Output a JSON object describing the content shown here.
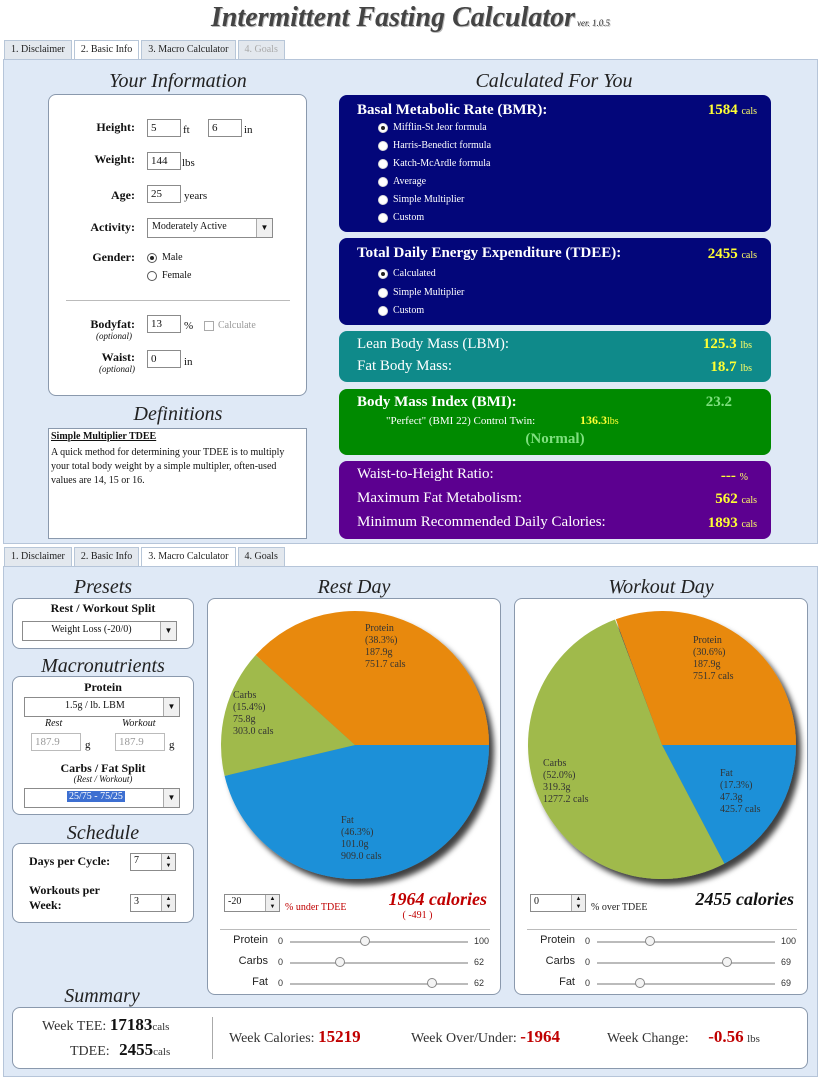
{
  "app": {
    "title": "Intermittent Fasting Calculator",
    "version": "ver. 1.0.5"
  },
  "tabs_top": [
    "1. Disclaimer",
    "2. Basic Info",
    "3. Macro Calculator",
    "4. Goals"
  ],
  "tabs_bottom": [
    "1. Disclaimer",
    "2. Basic Info",
    "3. Macro Calculator",
    "4. Goals"
  ],
  "info": {
    "title": "Your Information",
    "height_label": "Height:",
    "height_ft": "5",
    "ft": "ft",
    "height_in": "6",
    "in": "in",
    "weight_label": "Weight:",
    "weight": "144",
    "lbs": "lbs",
    "age_label": "Age:",
    "age": "25",
    "years": "years",
    "activity_label": "Activity:",
    "activity": "Moderately Active",
    "gender_label": "Gender:",
    "male": "Male",
    "female": "Female",
    "bodyfat_label": "Bodyfat:",
    "optional": "(optional)",
    "bodyfat": "13",
    "pct": "%",
    "calculate": "Calculate",
    "waist_label": "Waist:",
    "waist": "0",
    "waist_unit": "in"
  },
  "definitions": {
    "title": "Definitions",
    "term": "Simple Multiplier TDEE",
    "text": "A quick method for determining your TDEE is to multiply your total body weight by a simple multipler, often-used values are 14, 15 or 16."
  },
  "calc": {
    "title": "Calculated For You",
    "bmr_label": "Basal Metabolic Rate (BMR):",
    "bmr_value": "1584",
    "cals": "cals",
    "bmr_options": [
      "Mifflin-St Jeor formula",
      "Harris-Benedict formula",
      "Katch-McArdle formula",
      "Average",
      "Simple Multiplier",
      "Custom"
    ],
    "tdee_label": "Total Daily Energy Expenditure (TDEE):",
    "tdee_value": "2455",
    "tdee_options": [
      "Calculated",
      "Simple Multiplier",
      "Custom"
    ],
    "lbm_label": "Lean Body Mass (LBM):",
    "lbm_value": "125.3",
    "fbm_label": "Fat Body Mass:",
    "fbm_value": "18.7",
    "bmi_label": "Body Mass Index (BMI):",
    "bmi_value": "23.2",
    "twin_label": "\"Perfect\" (BMI 22) Control Twin:",
    "twin_value": "136.3",
    "twin_unit": "lbs",
    "bmi_status": "(Normal)",
    "whr_label": "Waist-to-Height Ratio:",
    "whr_value": "---",
    "whr_unit": "%",
    "mfm_label": "Maximum Fat Metabolism:",
    "mfm_value": "562",
    "mrdc_label": "Minimum Recommended Daily Calories:",
    "mrdc_value": "1893",
    "lbs": "lbs"
  },
  "presets": {
    "title": "Presets",
    "split_label": "Rest / Workout Split",
    "split_value": "Weight Loss (-20/0)"
  },
  "macros": {
    "title": "Macronutrients",
    "protein_label": "Protein",
    "protein_value": "1.5g / lb. LBM",
    "rest": "Rest",
    "workout": "Workout",
    "rest_g": "187.9",
    "workout_g": "187.9",
    "g": "g",
    "split_label": "Carbs / Fat Split",
    "split_sub": "(Rest / Workout)",
    "split_value": "25/75 - 75/25"
  },
  "schedule": {
    "title": "Schedule",
    "days_label": "Days per Cycle:",
    "days": "7",
    "workouts_label": "Workouts per",
    "week_label": "Week:",
    "workouts": "3"
  },
  "rest_day": {
    "title": "Rest Day",
    "protein": [
      "Protein",
      "(38.3%)",
      "187.9g",
      "751.7 cals"
    ],
    "carbs": [
      "Carbs",
      "(15.4%)",
      "75.8g",
      "303.0 cals"
    ],
    "fat": [
      "Fat",
      "(46.3%)",
      "101.0g",
      "909.0 cals"
    ],
    "adjust": "-20",
    "adjust_label": "% under TDEE",
    "calories": "1964 calories",
    "diff": "( -491 )",
    "sliders": [
      {
        "label": "Protein",
        "min": "0",
        "max": "100",
        "pos": 0.42
      },
      {
        "label": "Carbs",
        "min": "0",
        "max": "62",
        "pos": 0.28
      },
      {
        "label": "Fat",
        "min": "0",
        "max": "62",
        "pos": 0.8
      }
    ]
  },
  "workout_day": {
    "title": "Workout Day",
    "protein": [
      "Protein",
      "(30.6%)",
      "187.9g",
      "751.7 cals"
    ],
    "carbs": [
      "Carbs",
      "(52.0%)",
      "319.3g",
      "1277.2 cals"
    ],
    "fat": [
      "Fat",
      "(17.3%)",
      "47.3g",
      "425.7 cals"
    ],
    "adjust": "0",
    "adjust_label": "% over TDEE",
    "calories": "2455 calories",
    "sliders": [
      {
        "label": "Protein",
        "min": "0",
        "max": "100",
        "pos": 0.3
      },
      {
        "label": "Carbs",
        "min": "0",
        "max": "69",
        "pos": 0.73
      },
      {
        "label": "Fat",
        "min": "0",
        "max": "69",
        "pos": 0.24
      }
    ]
  },
  "pie_colors": {
    "protein": "#e8890a",
    "carbs": "#a0ba4c",
    "fat": "#1e90d8"
  },
  "pie_fractions": {
    "rest": [
      0.383,
      0.154,
      0.463
    ],
    "workout": [
      0.306,
      0.52,
      0.173
    ]
  },
  "summary": {
    "title": "Summary",
    "week_tee_label": "Week TEE:",
    "week_tee": "17183",
    "cals": "cals",
    "tdee_label": "TDEE:",
    "tdee": "2455",
    "week_cal_label": "Week Calories:",
    "week_cal": "15219",
    "over_under_label": "Week Over/Under:",
    "over_under": "-1964",
    "change_label": "Week Change:",
    "change": "-0.56",
    "lbs": "lbs"
  }
}
